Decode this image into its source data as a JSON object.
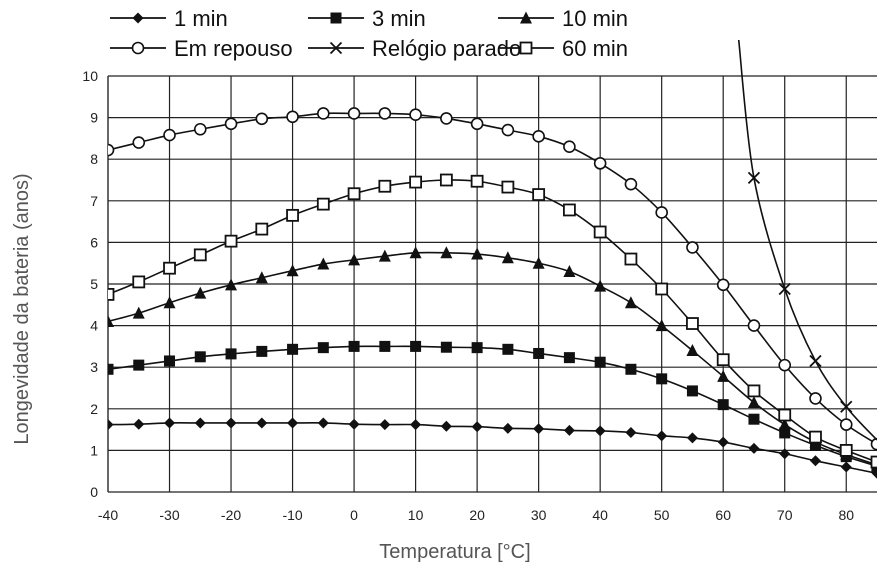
{
  "chart_data": {
    "type": "line",
    "title": "",
    "xlabel": "Temperatura [°C]",
    "ylabel": "Longevidade da bateria (anos)",
    "xlim": [
      -40,
      85
    ],
    "ylim": [
      0,
      10
    ],
    "xticks": [
      -40,
      -30,
      -20,
      -10,
      0,
      10,
      20,
      30,
      40,
      50,
      60,
      70,
      80
    ],
    "yticks": [
      0,
      1,
      2,
      3,
      4,
      5,
      6,
      7,
      8,
      9,
      10
    ],
    "grid": true,
    "legend_position": "top",
    "series": [
      {
        "name": "1 min",
        "marker": "diamond",
        "x": [
          -40,
          -35,
          -30,
          -25,
          -20,
          -15,
          -10,
          -5,
          0,
          5,
          10,
          15,
          20,
          25,
          30,
          35,
          40,
          45,
          50,
          55,
          60,
          65,
          70,
          75,
          80,
          85
        ],
        "y": [
          1.62,
          1.63,
          1.66,
          1.66,
          1.66,
          1.66,
          1.66,
          1.66,
          1.63,
          1.62,
          1.62,
          1.58,
          1.57,
          1.53,
          1.52,
          1.48,
          1.47,
          1.43,
          1.35,
          1.3,
          1.2,
          1.05,
          0.92,
          0.75,
          0.6,
          0.45
        ]
      },
      {
        "name": "3 min",
        "marker": "square-filled",
        "x": [
          -40,
          -35,
          -30,
          -25,
          -20,
          -15,
          -10,
          -5,
          0,
          5,
          10,
          15,
          20,
          25,
          30,
          35,
          40,
          45,
          50,
          55,
          60,
          65,
          70,
          75,
          80,
          85
        ],
        "y": [
          2.95,
          3.05,
          3.15,
          3.25,
          3.32,
          3.38,
          3.43,
          3.47,
          3.5,
          3.5,
          3.5,
          3.48,
          3.47,
          3.43,
          3.33,
          3.23,
          3.12,
          2.95,
          2.72,
          2.43,
          2.1,
          1.75,
          1.42,
          1.12,
          0.85,
          0.62
        ]
      },
      {
        "name": "10 min",
        "marker": "triangle",
        "x": [
          -40,
          -35,
          -30,
          -25,
          -20,
          -15,
          -10,
          -5,
          0,
          5,
          10,
          15,
          20,
          25,
          30,
          35,
          40,
          45,
          50,
          55,
          60,
          65,
          70,
          75,
          80,
          85
        ],
        "y": [
          4.1,
          4.3,
          4.55,
          4.78,
          4.98,
          5.15,
          5.32,
          5.48,
          5.58,
          5.67,
          5.75,
          5.75,
          5.72,
          5.63,
          5.5,
          5.3,
          4.95,
          4.55,
          4.0,
          3.4,
          2.78,
          2.15,
          1.62,
          1.2,
          0.9,
          0.65
        ]
      },
      {
        "name": "Em repouso",
        "marker": "circle-open",
        "x": [
          -40,
          -35,
          -30,
          -25,
          -20,
          -15,
          -10,
          -5,
          0,
          5,
          10,
          15,
          20,
          25,
          30,
          35,
          40,
          45,
          50,
          55,
          60,
          65,
          70,
          75,
          80,
          85
        ],
        "y": [
          8.22,
          8.4,
          8.58,
          8.72,
          8.85,
          8.97,
          9.02,
          9.1,
          9.1,
          9.1,
          9.07,
          8.98,
          8.85,
          8.7,
          8.55,
          8.3,
          7.9,
          7.4,
          6.72,
          5.88,
          4.98,
          4.0,
          3.05,
          2.25,
          1.62,
          1.15
        ]
      },
      {
        "name": "Relógio parado",
        "marker": "x",
        "x": [
          65,
          70,
          75,
          80
        ],
        "y": [
          7.55,
          4.88,
          3.15,
          2.05
        ]
      },
      {
        "name": "60 min",
        "marker": "square-open",
        "x": [
          -40,
          -35,
          -30,
          -25,
          -20,
          -15,
          -10,
          -5,
          0,
          5,
          10,
          15,
          20,
          25,
          30,
          35,
          40,
          45,
          50,
          55,
          60,
          65,
          70,
          75,
          80,
          85
        ],
        "y": [
          4.75,
          5.05,
          5.38,
          5.7,
          6.03,
          6.32,
          6.65,
          6.92,
          7.17,
          7.35,
          7.45,
          7.5,
          7.47,
          7.33,
          7.15,
          6.78,
          6.25,
          5.6,
          4.88,
          4.05,
          3.18,
          2.43,
          1.85,
          1.32,
          1.0,
          0.72
        ]
      }
    ]
  }
}
